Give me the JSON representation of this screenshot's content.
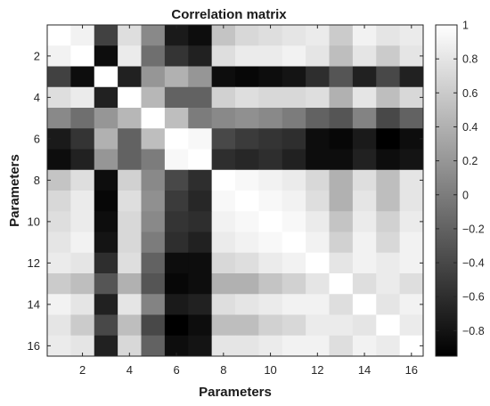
{
  "chart_data": {
    "type": "heatmap",
    "title": "Correlation matrix",
    "xlabel": "Parameters",
    "ylabel": "Parameters",
    "x_ticks": [
      "2",
      "4",
      "6",
      "8",
      "10",
      "12",
      "14",
      "16"
    ],
    "y_ticks": [
      "2",
      "4",
      "6",
      "8",
      "10",
      "12",
      "14",
      "16"
    ],
    "colormap": "gray",
    "colorbar": {
      "range": [
        -0.95,
        1
      ],
      "ticks": [
        "1",
        "0.8",
        "0.6",
        "0.4",
        "0.2",
        "0",
        "−0.2",
        "−0.4",
        "−0.6",
        "−0.8"
      ]
    },
    "size": 16,
    "matrix": [
      [
        1.0,
        0.9,
        -0.45,
        0.75,
        0.1,
        -0.75,
        -0.85,
        0.55,
        0.7,
        0.75,
        0.8,
        0.85,
        0.6,
        0.9,
        0.8,
        0.85
      ],
      [
        0.9,
        1.0,
        -0.85,
        0.85,
        -0.1,
        -0.55,
        -0.7,
        0.75,
        0.85,
        0.85,
        0.9,
        0.8,
        0.5,
        0.8,
        0.6,
        0.8
      ],
      [
        -0.45,
        -0.85,
        1.0,
        -0.7,
        0.2,
        0.4,
        0.2,
        -0.85,
        -0.9,
        -0.85,
        -0.8,
        -0.6,
        -0.3,
        -0.7,
        -0.4,
        -0.7
      ],
      [
        0.75,
        0.85,
        -0.7,
        1.0,
        0.45,
        -0.2,
        -0.2,
        0.65,
        0.75,
        0.7,
        0.7,
        0.75,
        0.4,
        0.8,
        0.5,
        0.7
      ],
      [
        0.1,
        -0.1,
        0.2,
        0.45,
        1.0,
        0.5,
        0.0,
        0.1,
        0.15,
        0.1,
        0.0,
        -0.2,
        -0.3,
        0.05,
        -0.4,
        -0.2
      ],
      [
        -0.75,
        -0.55,
        0.4,
        -0.2,
        0.5,
        1.0,
        0.95,
        -0.4,
        -0.5,
        -0.55,
        -0.6,
        -0.85,
        -0.9,
        -0.75,
        -0.95,
        -0.85
      ],
      [
        -0.85,
        -0.7,
        0.2,
        -0.2,
        0.0,
        0.95,
        1.0,
        -0.6,
        -0.65,
        -0.6,
        -0.7,
        -0.85,
        -0.85,
        -0.7,
        -0.85,
        -0.8
      ],
      [
        0.55,
        0.75,
        -0.85,
        0.65,
        0.1,
        -0.4,
        -0.6,
        1.0,
        0.95,
        0.9,
        0.85,
        0.7,
        0.4,
        0.75,
        0.5,
        0.8
      ],
      [
        0.7,
        0.85,
        -0.9,
        0.75,
        0.15,
        -0.5,
        -0.65,
        0.95,
        1.0,
        0.95,
        0.9,
        0.75,
        0.4,
        0.8,
        0.5,
        0.8
      ],
      [
        0.75,
        0.85,
        -0.85,
        0.7,
        0.1,
        -0.55,
        -0.6,
        0.9,
        0.95,
        1.0,
        0.95,
        0.85,
        0.55,
        0.85,
        0.65,
        0.85
      ],
      [
        0.8,
        0.9,
        -0.8,
        0.7,
        0.0,
        -0.6,
        -0.7,
        0.85,
        0.9,
        0.95,
        1.0,
        0.9,
        0.65,
        0.9,
        0.7,
        0.9
      ],
      [
        0.85,
        0.8,
        -0.6,
        0.75,
        -0.2,
        -0.85,
        -0.85,
        0.7,
        0.75,
        0.85,
        0.9,
        1.0,
        0.8,
        0.9,
        0.85,
        0.9
      ],
      [
        0.6,
        0.5,
        -0.3,
        0.4,
        -0.3,
        -0.9,
        -0.85,
        0.4,
        0.4,
        0.55,
        0.65,
        0.8,
        1.0,
        0.75,
        0.85,
        0.75
      ],
      [
        0.9,
        0.8,
        -0.7,
        0.8,
        0.05,
        -0.75,
        -0.7,
        0.75,
        0.8,
        0.85,
        0.9,
        0.9,
        0.75,
        1.0,
        0.8,
        0.9
      ],
      [
        0.8,
        0.6,
        -0.4,
        0.5,
        -0.4,
        -0.95,
        -0.85,
        0.5,
        0.5,
        0.65,
        0.7,
        0.85,
        0.85,
        0.8,
        1.0,
        0.85
      ],
      [
        0.85,
        0.8,
        -0.7,
        0.7,
        -0.2,
        -0.85,
        -0.8,
        0.8,
        0.8,
        0.85,
        0.9,
        0.9,
        0.75,
        0.9,
        0.85,
        1.0
      ]
    ]
  }
}
